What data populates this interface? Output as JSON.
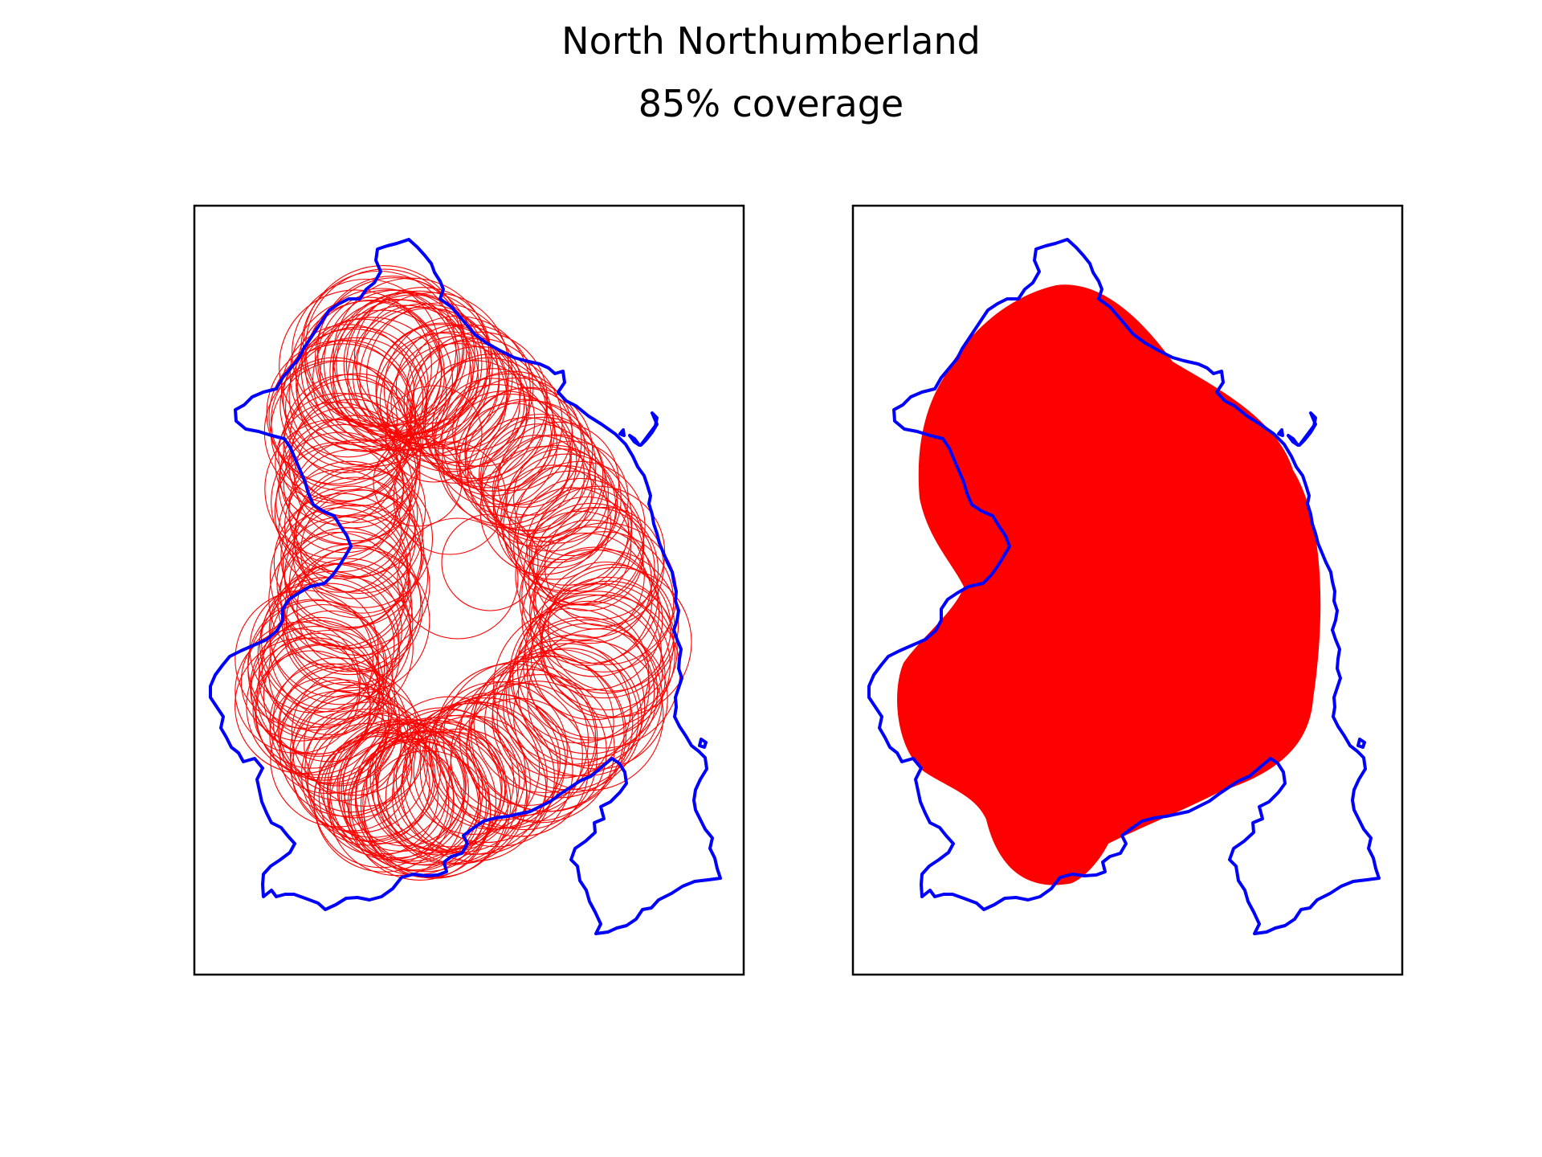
{
  "figure": {
    "title": "North Northumberland",
    "subtitle": "85% coverage"
  },
  "colors": {
    "boundary": "#0000ff",
    "coverage": "#ff0000",
    "axes": "#000000",
    "background": "#ffffff"
  },
  "panels": [
    {
      "name": "circle-outlines-panel",
      "style": "outline"
    },
    {
      "name": "filled-coverage-panel",
      "style": "filled"
    }
  ]
}
